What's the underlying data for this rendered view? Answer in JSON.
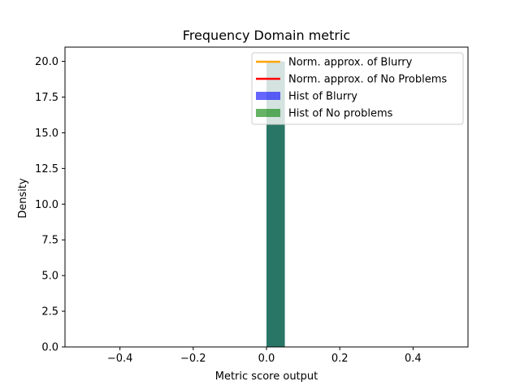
{
  "chart_data": {
    "type": "bar",
    "title": "Frequency Domain metric",
    "xlabel": "Metric score output",
    "ylabel": "Density",
    "xlim": [
      -0.55,
      0.55
    ],
    "ylim": [
      0,
      21
    ],
    "xticks": [
      -0.4,
      -0.2,
      0.0,
      0.2,
      0.4
    ],
    "xtick_labels": [
      "−0.4",
      "−0.2",
      "0.0",
      "0.2",
      "0.4"
    ],
    "yticks": [
      0,
      2.5,
      5,
      7.5,
      10,
      12.5,
      15,
      17.5,
      20
    ],
    "ytick_labels": [
      "0.0",
      "2.5",
      "5.0",
      "7.5",
      "10.0",
      "12.5",
      "15.0",
      "17.5",
      "20.0"
    ],
    "grid": false,
    "legend_position": "top-right",
    "series": [
      {
        "name": "Norm. approx. of Blurry",
        "kind": "line",
        "color": "#ffa500",
        "values": []
      },
      {
        "name": "Norm. approx. of No Problems",
        "kind": "line",
        "color": "#ff0000",
        "values": []
      },
      {
        "name": "Hist of Blurry",
        "kind": "hist",
        "color": "#0000ff",
        "alpha": 0.6,
        "bins": [
          {
            "x0": 0.0,
            "x1": 0.05,
            "value": 20
          }
        ]
      },
      {
        "name": "Hist of No problems",
        "kind": "hist",
        "color": "#008000",
        "alpha": 0.6,
        "bins": [
          {
            "x0": 0.0,
            "x1": 0.05,
            "value": 20
          }
        ]
      }
    ]
  }
}
